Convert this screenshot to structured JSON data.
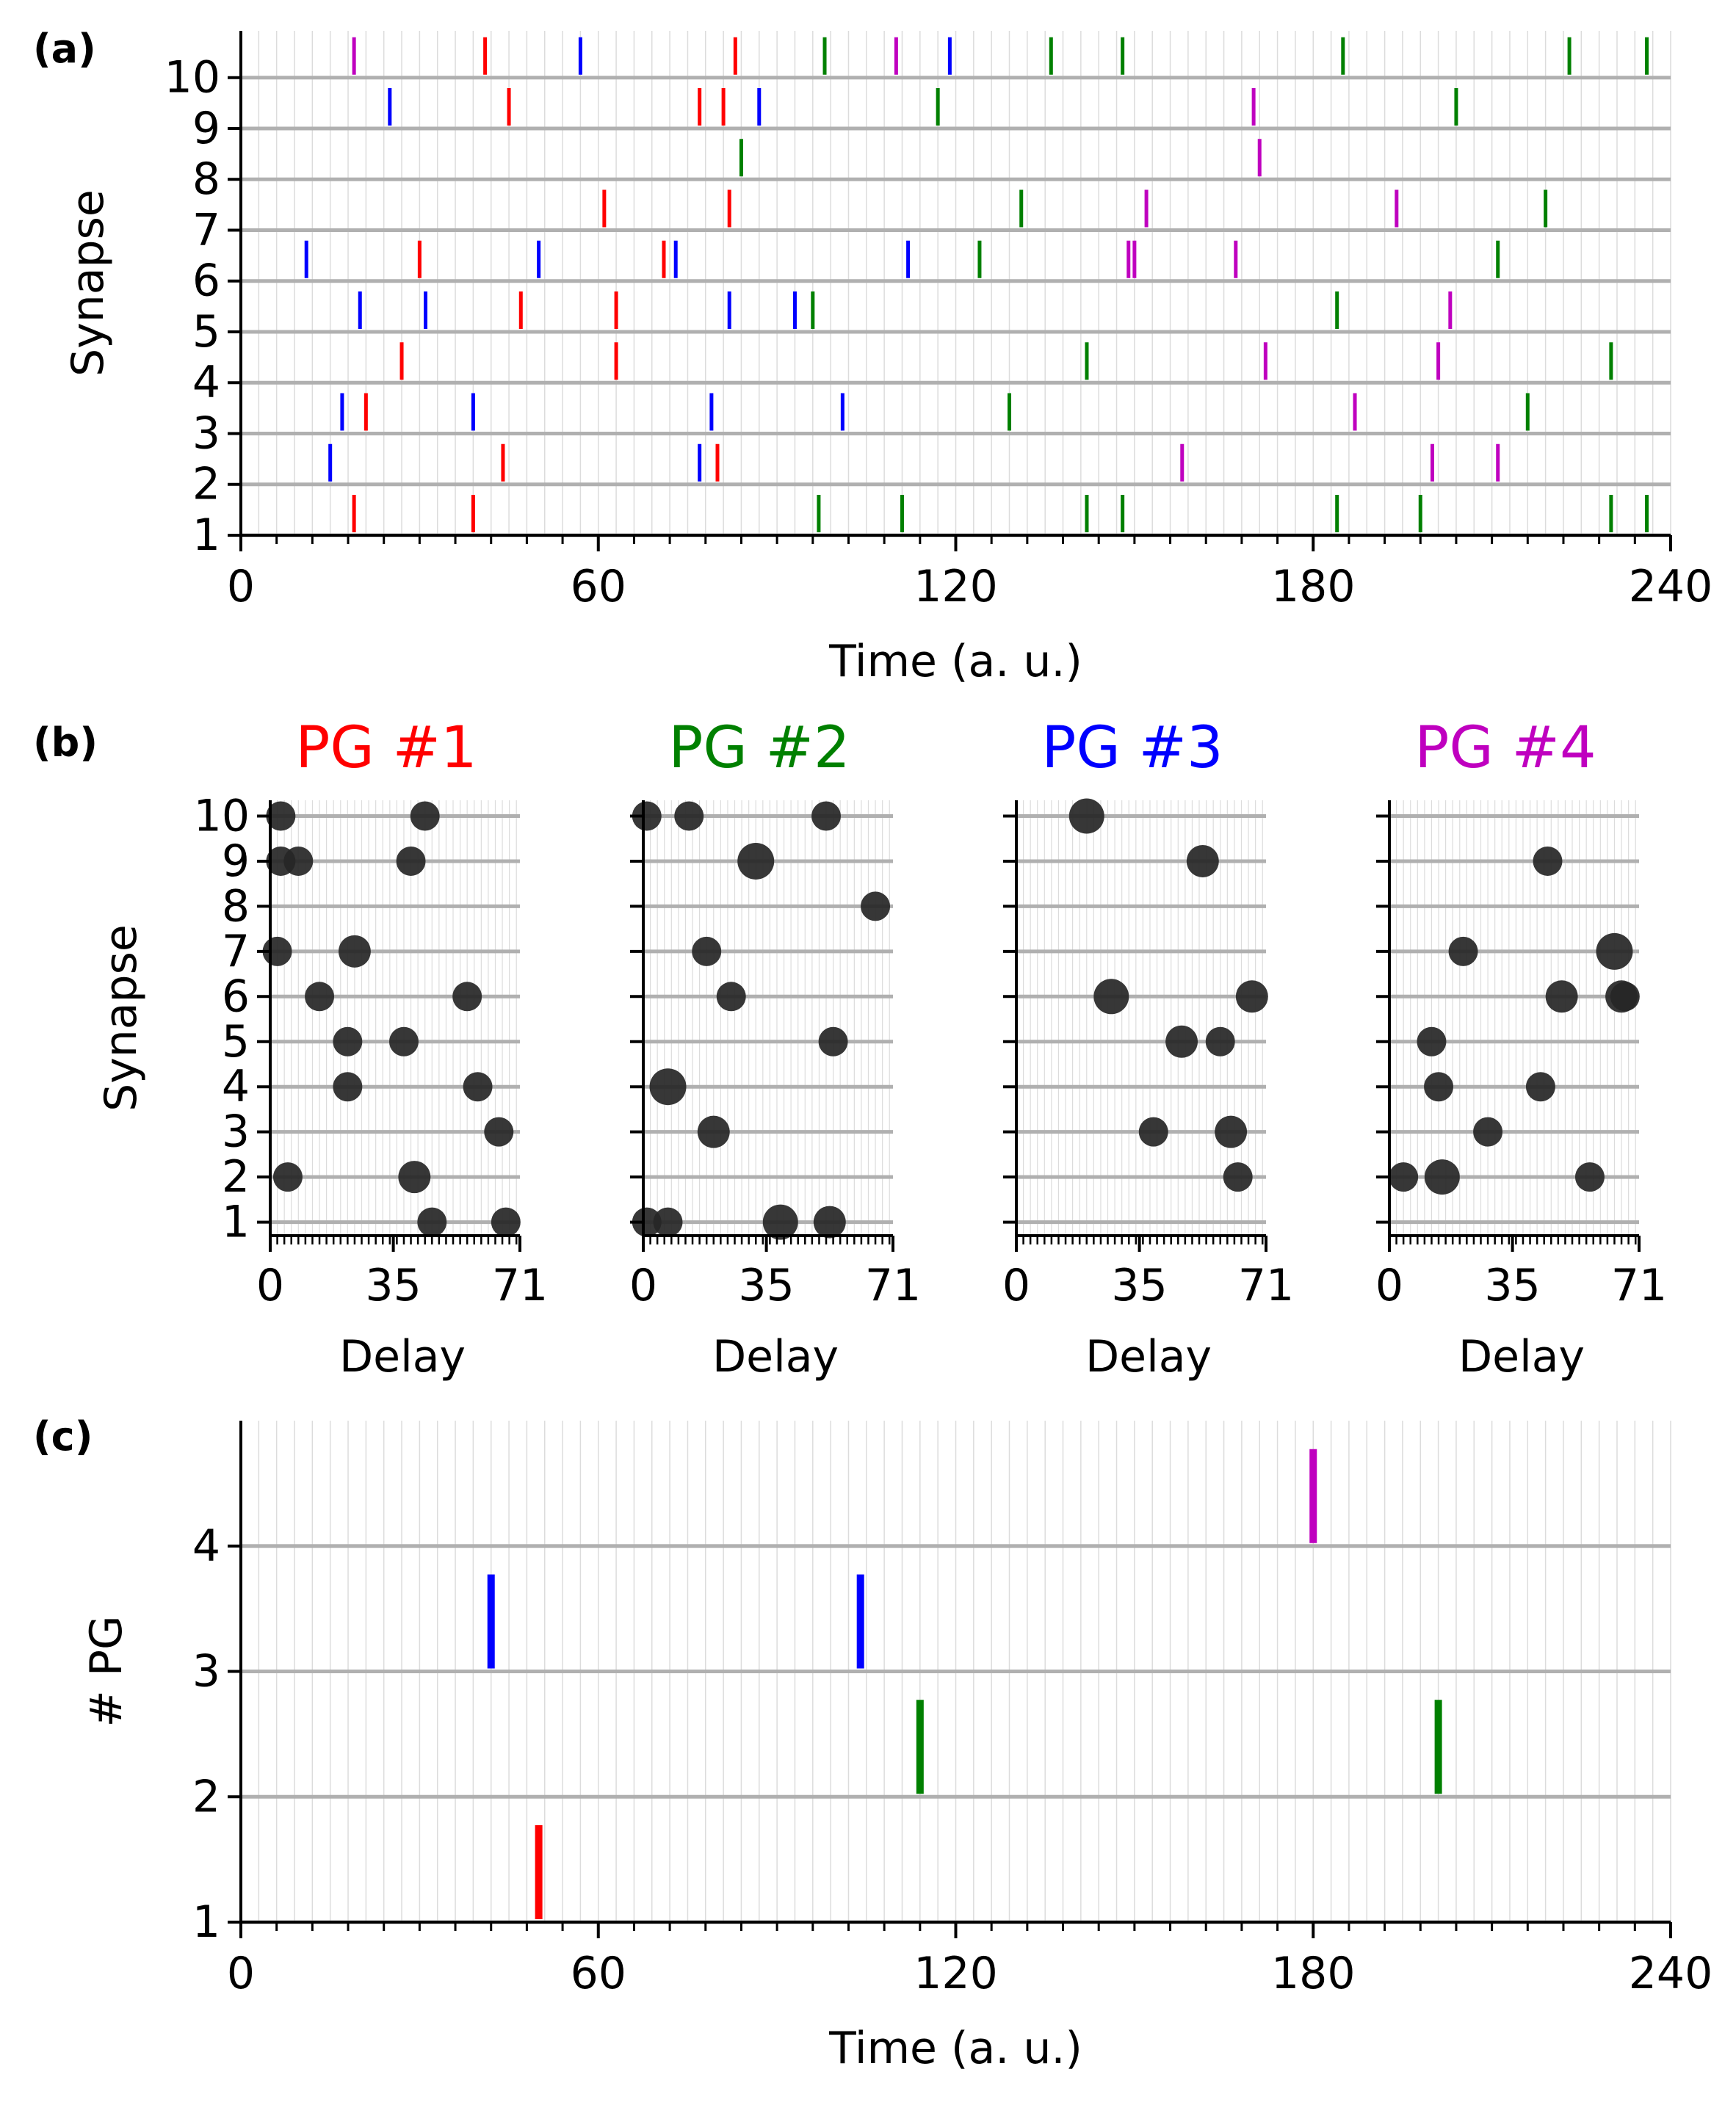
{
  "colors": {
    "red": "#ff0000",
    "green": "#008000",
    "blue": "#0000ff",
    "magenta": "#bf00bf",
    "grid": "#b0b0b0",
    "minorgrid": "#dcdcdc",
    "dot": "#262626"
  },
  "chart_data": [
    {
      "panel": "(a)",
      "type": "scatter",
      "marker": "vertical-tick",
      "xlabel": "Time (a. u.)",
      "ylabel": "Synapse",
      "xlim": [
        0,
        240
      ],
      "xticks": [
        0,
        60,
        120,
        180,
        240
      ],
      "yticks": [
        1,
        2,
        3,
        4,
        5,
        6,
        7,
        8,
        9,
        10
      ],
      "spikes": [
        {
          "synapse": 1,
          "red": [
            19,
            39
          ],
          "green": [
            97,
            111,
            142,
            148,
            184,
            198,
            230,
            236
          ],
          "blue": [],
          "magenta": []
        },
        {
          "synapse": 2,
          "red": [
            44,
            80
          ],
          "green": [],
          "blue": [
            15,
            77
          ],
          "magenta": [
            158,
            200,
            211
          ]
        },
        {
          "synapse": 3,
          "red": [
            21
          ],
          "green": [
            129,
            216
          ],
          "blue": [
            17,
            39,
            79,
            101
          ],
          "magenta": [
            187
          ]
        },
        {
          "synapse": 4,
          "red": [
            27,
            63
          ],
          "green": [
            142,
            230
          ],
          "blue": [],
          "magenta": [
            172,
            201
          ]
        },
        {
          "synapse": 5,
          "red": [
            47,
            63
          ],
          "green": [
            96,
            184
          ],
          "blue": [
            20,
            31,
            82,
            93
          ],
          "magenta": [
            203
          ]
        },
        {
          "synapse": 6,
          "red": [
            30,
            71
          ],
          "green": [
            124,
            211
          ],
          "blue": [
            11,
            50,
            73,
            112
          ],
          "magenta": [
            149,
            150,
            167
          ]
        },
        {
          "synapse": 7,
          "red": [
            61,
            82
          ],
          "green": [
            131,
            219
          ],
          "blue": [],
          "magenta": [
            152,
            194
          ]
        },
        {
          "synapse": 8,
          "red": [],
          "green": [
            84
          ],
          "blue": [],
          "magenta": [
            171
          ]
        },
        {
          "synapse": 9,
          "red": [
            45,
            77,
            81
          ],
          "green": [
            117,
            204
          ],
          "blue": [
            25,
            87
          ],
          "magenta": [
            170
          ]
        },
        {
          "synapse": 10,
          "red": [
            41,
            83
          ],
          "green": [
            98,
            136,
            148,
            185,
            223,
            236
          ],
          "blue": [
            57,
            119
          ],
          "magenta": [
            19,
            110
          ]
        }
      ]
    },
    {
      "panel": "(b)",
      "type": "scatter",
      "title": "PG #1",
      "title_color": "#ff0000",
      "xlabel": "Delay",
      "ylabel": "Synapse",
      "xlim": [
        0,
        71
      ],
      "xticks": [
        0,
        35,
        71
      ],
      "yticks": [
        1,
        2,
        3,
        4,
        5,
        6,
        7,
        8,
        9,
        10
      ],
      "points": [
        [
          3,
          10,
          1
        ],
        [
          44,
          10,
          1
        ],
        [
          3,
          9,
          1
        ],
        [
          8,
          9,
          1
        ],
        [
          40,
          9,
          1
        ],
        [
          2,
          7,
          1
        ],
        [
          24,
          7,
          1.1
        ],
        [
          14,
          6,
          1
        ],
        [
          56,
          6,
          1
        ],
        [
          22,
          5,
          1
        ],
        [
          38,
          5,
          1
        ],
        [
          22,
          4,
          1
        ],
        [
          59,
          4,
          1
        ],
        [
          65,
          3,
          1
        ],
        [
          5,
          2,
          1
        ],
        [
          41,
          2,
          1.1
        ],
        [
          46,
          1,
          1
        ],
        [
          67,
          1,
          1
        ]
      ]
    },
    {
      "panel": "(b)",
      "type": "scatter",
      "title": "PG #2",
      "title_color": "#008000",
      "xlabel": "Delay",
      "ylabel": "",
      "xlim": [
        0,
        71
      ],
      "xticks": [
        0,
        35,
        71
      ],
      "yticks": [
        1,
        2,
        3,
        4,
        5,
        6,
        7,
        8,
        9,
        10
      ],
      "points": [
        [
          1,
          10,
          1
        ],
        [
          13,
          10,
          1
        ],
        [
          52,
          10,
          1
        ],
        [
          32,
          9,
          1.25
        ],
        [
          66,
          8,
          1
        ],
        [
          18,
          7,
          1
        ],
        [
          25,
          6,
          1
        ],
        [
          54,
          5,
          1
        ],
        [
          7,
          4,
          1.25
        ],
        [
          20,
          3,
          1.1
        ],
        [
          1,
          1,
          1
        ],
        [
          7,
          1,
          1
        ],
        [
          39,
          1,
          1.2
        ],
        [
          53,
          1,
          1.1
        ]
      ]
    },
    {
      "panel": "(b)",
      "type": "scatter",
      "title": "PG #3",
      "title_color": "#0000ff",
      "xlabel": "Delay",
      "ylabel": "",
      "xlim": [
        0,
        71
      ],
      "xticks": [
        0,
        35,
        71
      ],
      "yticks": [
        1,
        2,
        3,
        4,
        5,
        6,
        7,
        8,
        9,
        10
      ],
      "points": [
        [
          20,
          10,
          1.2
        ],
        [
          53,
          9,
          1.1
        ],
        [
          27,
          6,
          1.2
        ],
        [
          67,
          6,
          1.1
        ],
        [
          47,
          5,
          1.1
        ],
        [
          58,
          5,
          1
        ],
        [
          61,
          3,
          1.1
        ],
        [
          39,
          3,
          1
        ],
        [
          63,
          2,
          1
        ]
      ]
    },
    {
      "panel": "(b)",
      "type": "scatter",
      "title": "PG #4",
      "title_color": "#bf00bf",
      "xlabel": "Delay",
      "ylabel": "",
      "xlim": [
        0,
        71
      ],
      "xticks": [
        0,
        35,
        71
      ],
      "yticks": [
        1,
        2,
        3,
        4,
        5,
        6,
        7,
        8,
        9,
        10
      ],
      "points": [
        [
          45,
          9,
          1
        ],
        [
          21,
          7,
          1
        ],
        [
          64,
          7,
          1.25
        ],
        [
          49,
          6,
          1.1
        ],
        [
          66,
          6,
          1.1
        ],
        [
          67,
          6,
          1
        ],
        [
          12,
          5,
          1
        ],
        [
          14,
          4,
          1
        ],
        [
          43,
          4,
          1
        ],
        [
          28,
          3,
          1
        ],
        [
          4,
          2,
          1
        ],
        [
          15,
          2,
          1.2
        ],
        [
          57,
          2,
          1
        ]
      ]
    },
    {
      "panel": "(c)",
      "type": "scatter",
      "marker": "vertical-tick",
      "xlabel": "Time (a. u.)",
      "ylabel": "# PG",
      "xlim": [
        0,
        240
      ],
      "xticks": [
        0,
        60,
        120,
        180,
        240
      ],
      "yticks": [
        1,
        2,
        3,
        4
      ],
      "events": [
        {
          "pg": 1,
          "color": "#ff0000",
          "times": [
            50
          ]
        },
        {
          "pg": 2,
          "color": "#008000",
          "times": [
            114,
            201
          ]
        },
        {
          "pg": 3,
          "color": "#0000ff",
          "times": [
            42,
            104
          ]
        },
        {
          "pg": 4,
          "color": "#bf00bf",
          "times": [
            180
          ]
        }
      ]
    }
  ]
}
